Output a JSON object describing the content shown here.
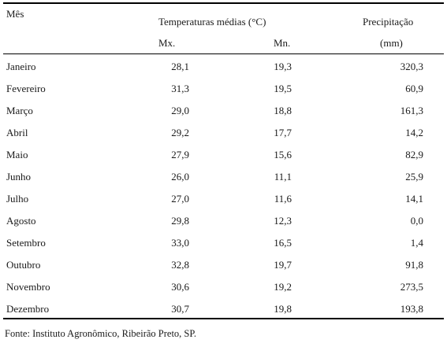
{
  "header": {
    "month_col": "Mês",
    "temp_group": "Temperaturas médias (°C)",
    "max_col": "Mx.",
    "min_col": "Mn.",
    "precip_col": "Precipitação",
    "precip_unit": "(mm)"
  },
  "rows": [
    {
      "month": "Janeiro",
      "max": "28,1",
      "min": "19,3",
      "precip": "320,3"
    },
    {
      "month": "Fevereiro",
      "max": "31,3",
      "min": "19,5",
      "precip": "60,9"
    },
    {
      "month": "Março",
      "max": "29,0",
      "min": "18,8",
      "precip": "161,3"
    },
    {
      "month": "Abril",
      "max": "29,2",
      "min": "17,7",
      "precip": "14,2"
    },
    {
      "month": "Maio",
      "max": "27,9",
      "min": "15,6",
      "precip": "82,9"
    },
    {
      "month": "Junho",
      "max": "26,0",
      "min": "11,1",
      "precip": "25,9"
    },
    {
      "month": "Julho",
      "max": "27,0",
      "min": "11,6",
      "precip": "14,1"
    },
    {
      "month": "Agosto",
      "max": "29,8",
      "min": "12,3",
      "precip": "0,0"
    },
    {
      "month": "Setembro",
      "max": "33,0",
      "min": "16,5",
      "precip": "1,4"
    },
    {
      "month": "Outubro",
      "max": "32,8",
      "min": "19,7",
      "precip": "91,8"
    },
    {
      "month": "Novembro",
      "max": "30,6",
      "min": "19,2",
      "precip": "273,5"
    },
    {
      "month": "Dezembro",
      "max": "30,7",
      "min": "19,8",
      "precip": "193,8"
    }
  ],
  "source": "Fonte: Instituto Agronômico, Ribeirão Preto, SP."
}
